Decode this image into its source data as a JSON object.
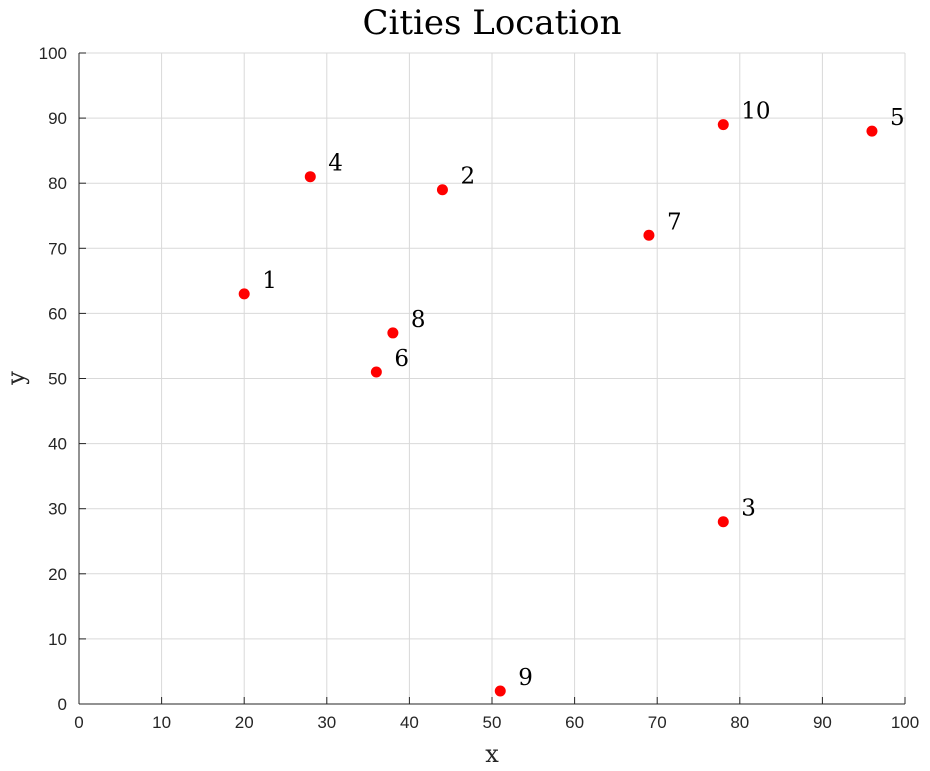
{
  "chart_data": {
    "type": "scatter",
    "title": "Cities Location",
    "xlabel": "x",
    "ylabel": "y",
    "xlim": [
      0,
      100
    ],
    "ylim": [
      0,
      100
    ],
    "xticks": [
      0,
      10,
      20,
      30,
      40,
      50,
      60,
      70,
      80,
      90,
      100
    ],
    "yticks": [
      0,
      10,
      20,
      30,
      40,
      50,
      60,
      70,
      80,
      90,
      100
    ],
    "grid": true,
    "marker_color": "#ff0000",
    "points": [
      {
        "label": "1",
        "x": 20,
        "y": 63
      },
      {
        "label": "2",
        "x": 44,
        "y": 79
      },
      {
        "label": "3",
        "x": 78,
        "y": 28
      },
      {
        "label": "4",
        "x": 28,
        "y": 81
      },
      {
        "label": "5",
        "x": 96,
        "y": 88
      },
      {
        "label": "6",
        "x": 36,
        "y": 51
      },
      {
        "label": "7",
        "x": 69,
        "y": 72
      },
      {
        "label": "8",
        "x": 38,
        "y": 57
      },
      {
        "label": "9",
        "x": 51,
        "y": 2
      },
      {
        "label": "10",
        "x": 78,
        "y": 89
      }
    ]
  }
}
